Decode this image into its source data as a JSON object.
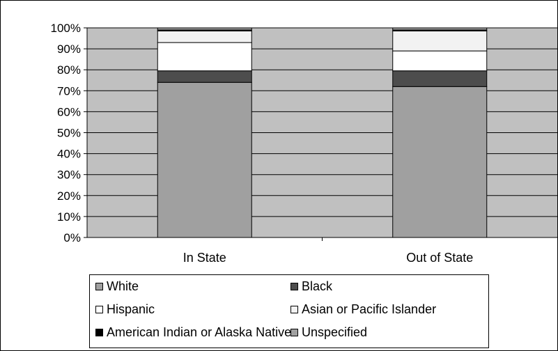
{
  "chart_data": {
    "type": "bar",
    "stacked": "percent",
    "categories": [
      "In State",
      "Out of State"
    ],
    "series": [
      {
        "name": "White",
        "values": [
          74,
          72
        ],
        "color": "#a0a0a0"
      },
      {
        "name": "Black",
        "values": [
          5.5,
          7.5
        ],
        "color": "#4d4d4d"
      },
      {
        "name": "Hispanic",
        "values": [
          13.5,
          9.5
        ],
        "color": "#ffffff"
      },
      {
        "name": "Asian or Pacific Islander",
        "values": [
          5.5,
          9.5
        ],
        "color": "#f2f2f2"
      },
      {
        "name": "American Indian or Alaska Native",
        "values": [
          0.5,
          0.5
        ],
        "color": "#000000"
      },
      {
        "name": "Unspecified",
        "values": [
          1,
          1
        ],
        "color": "#a0a0a0"
      }
    ],
    "ylim": [
      0,
      100
    ],
    "yticks": [
      "0%",
      "10%",
      "20%",
      "30%",
      "40%",
      "50%",
      "60%",
      "70%",
      "80%",
      "90%",
      "100%"
    ],
    "grid": true,
    "plot_background": "#c0c0c0",
    "legend_position": "bottom"
  }
}
